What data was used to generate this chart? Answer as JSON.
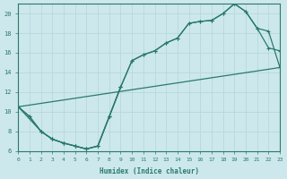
{
  "xlabel": "Humidex (Indice chaleur)",
  "bg_color": "#cce8ec",
  "line_color": "#2a7a6a",
  "grid_color": "#b8d8dc",
  "xlim": [
    0,
    23
  ],
  "ylim": [
    6,
    21
  ],
  "yticks": [
    6,
    8,
    10,
    12,
    14,
    16,
    18,
    20
  ],
  "xticks": [
    0,
    1,
    2,
    3,
    4,
    5,
    6,
    7,
    8,
    9,
    10,
    11,
    12,
    13,
    14,
    15,
    16,
    17,
    18,
    19,
    20,
    21,
    22,
    23
  ],
  "series": [
    {
      "x": [
        0,
        1,
        2,
        3,
        4,
        5,
        6,
        7,
        8,
        9,
        10,
        11,
        12,
        13,
        14,
        15,
        16,
        17,
        18,
        19,
        20,
        21,
        22,
        23
      ],
      "y": [
        10.5,
        9.5,
        8.0,
        7.2,
        6.8,
        6.5,
        6.2,
        6.5,
        9.5,
        12.5,
        15.2,
        15.8,
        16.2,
        17.0,
        17.5,
        19.0,
        19.2,
        19.3,
        20.0,
        21.0,
        20.2,
        18.5,
        16.5,
        16.2
      ]
    },
    {
      "x": [
        0,
        1,
        2,
        3,
        4,
        5,
        6,
        7,
        8,
        9,
        10,
        11,
        12,
        13,
        14,
        15,
        16,
        17,
        18,
        19,
        20,
        21,
        22,
        23
      ],
      "y": [
        10.5,
        9.5,
        8.0,
        7.2,
        6.8,
        6.5,
        6.2,
        6.5,
        9.5,
        12.5,
        15.2,
        15.8,
        16.2,
        17.0,
        17.5,
        19.0,
        19.2,
        19.3,
        20.0,
        21.0,
        20.2,
        18.5,
        18.2,
        14.5
      ]
    },
    {
      "x": [
        0,
        23
      ],
      "y": [
        10.5,
        14.5
      ]
    },
    {
      "x": [
        0,
        2,
        3,
        4,
        5,
        6,
        7,
        8,
        9
      ],
      "y": [
        10.5,
        8.0,
        7.2,
        6.8,
        6.5,
        6.2,
        6.5,
        9.5,
        12.5
      ]
    }
  ]
}
